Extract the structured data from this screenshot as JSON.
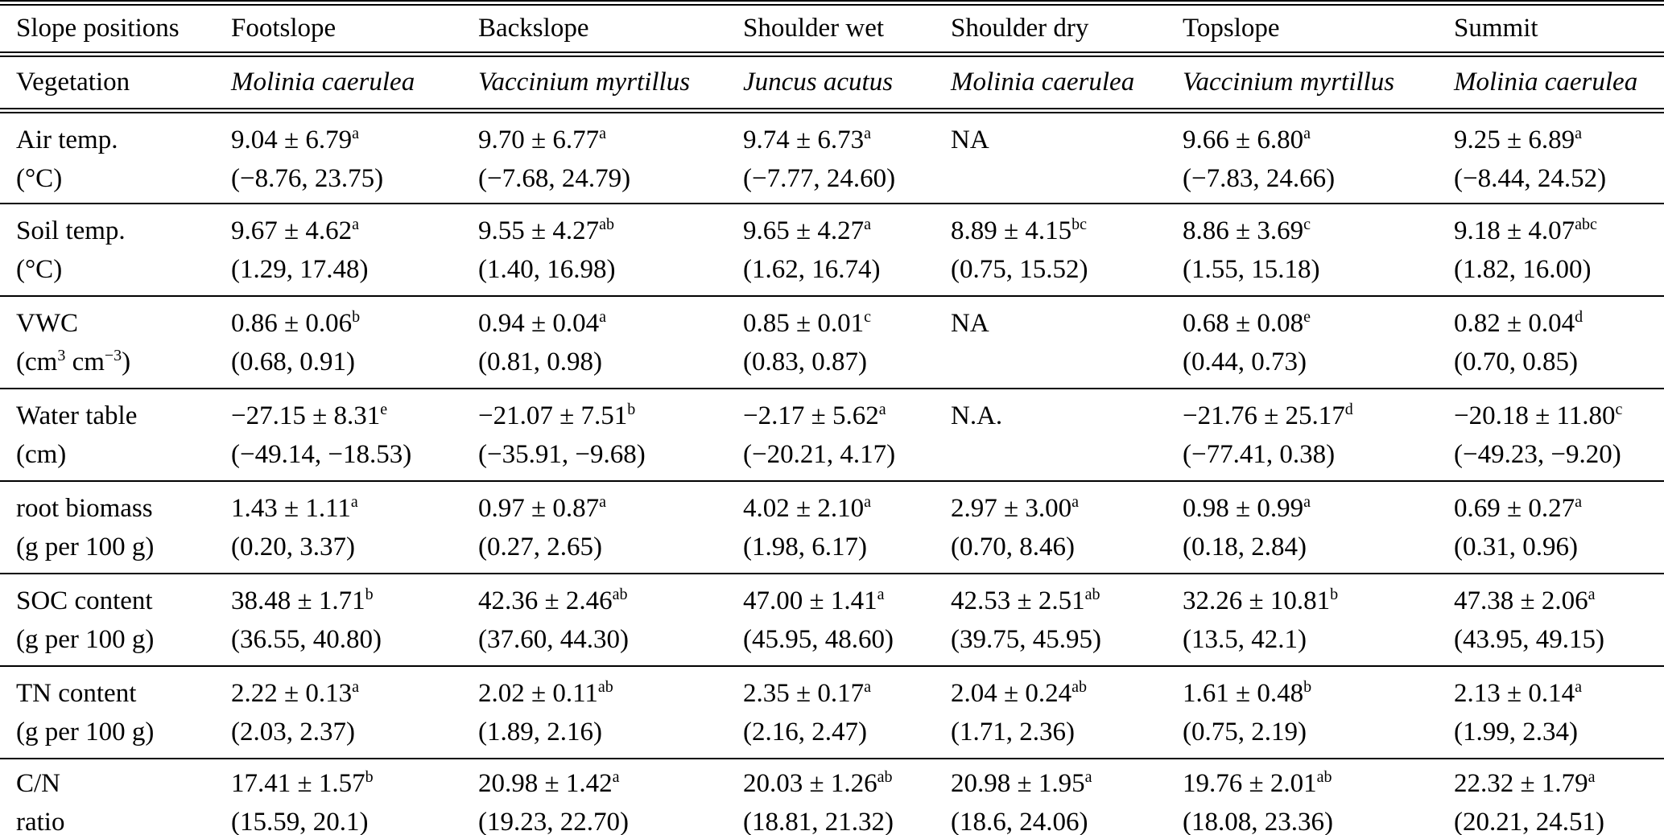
{
  "table": {
    "header": {
      "label": "Slope positions",
      "columns": [
        "Footslope",
        "Backslope",
        "Shoulder wet",
        "Shoulder dry",
        "Topslope",
        "Summit"
      ]
    },
    "vegetation": {
      "label": "Vegetation",
      "values": [
        "Molinia caerulea",
        "Vaccinium myrtillus",
        "Juncus acutus",
        "Molinia caerulea",
        "Vaccinium myrtillus",
        "Molinia caerulea"
      ]
    },
    "rows": [
      {
        "label": "Air temp.",
        "sublabel": [
          {
            "t": "(°C)"
          }
        ],
        "cells": [
          {
            "mean": "9.04 ± 6.79",
            "sup": "a",
            "range": "(−8.76, 23.75)"
          },
          {
            "mean": "9.70 ± 6.77",
            "sup": "a",
            "range": "(−7.68, 24.79)"
          },
          {
            "mean": "9.74 ± 6.73",
            "sup": "a",
            "range": "(−7.77, 24.60)"
          },
          {
            "na": "NA"
          },
          {
            "mean": "9.66 ± 6.80",
            "sup": "a",
            "range": "(−7.83, 24.66)"
          },
          {
            "mean": "9.25 ± 6.89",
            "sup": "a",
            "range": "(−8.44, 24.52)"
          }
        ]
      },
      {
        "label": "Soil temp.",
        "sublabel": [
          {
            "t": "(°C)"
          }
        ],
        "cells": [
          {
            "mean": "9.67 ± 4.62",
            "sup": "a",
            "range": "(1.29, 17.48)"
          },
          {
            "mean": "9.55 ± 4.27",
            "sup": "ab",
            "range": "(1.40, 16.98)"
          },
          {
            "mean": "9.65 ± 4.27",
            "sup": "a",
            "range": "(1.62, 16.74)"
          },
          {
            "mean": "8.89 ± 4.15",
            "sup": "bc",
            "range": "(0.75, 15.52)"
          },
          {
            "mean": "8.86 ± 3.69",
            "sup": "c",
            "range": "(1.55, 15.18)"
          },
          {
            "mean": "9.18 ± 4.07",
            "sup": "abc",
            "range": "(1.82, 16.00)"
          }
        ]
      },
      {
        "label": "VWC",
        "sublabel": [
          {
            "t": "(cm"
          },
          {
            "sup": "3"
          },
          {
            "t": " cm"
          },
          {
            "sup": "−3"
          },
          {
            "t": ")"
          }
        ],
        "cells": [
          {
            "mean": "0.86 ± 0.06",
            "sup": "b",
            "range": "(0.68, 0.91)"
          },
          {
            "mean": "0.94 ± 0.04",
            "sup": "a",
            "range": "(0.81, 0.98)"
          },
          {
            "mean": "0.85 ± 0.01",
            "sup": "c",
            "range": "(0.83, 0.87)"
          },
          {
            "na": "NA"
          },
          {
            "mean": "0.68 ± 0.08",
            "sup": "e",
            "range": "(0.44, 0.73)"
          },
          {
            "mean": "0.82 ± 0.04",
            "sup": "d",
            "range": "(0.70, 0.85)"
          }
        ]
      },
      {
        "label": "Water table",
        "sublabel": [
          {
            "t": "(cm)"
          }
        ],
        "cells": [
          {
            "mean": "−27.15 ± 8.31",
            "sup": "e",
            "range": "(−49.14, −18.53)"
          },
          {
            "mean": "−21.07 ± 7.51",
            "sup": "b",
            "range": "(−35.91, −9.68)"
          },
          {
            "mean": "−2.17 ± 5.62",
            "sup": "a",
            "range": "(−20.21, 4.17)"
          },
          {
            "na": "N.A."
          },
          {
            "mean": "−21.76 ± 25.17",
            "sup": "d",
            "range": "(−77.41, 0.38)"
          },
          {
            "mean": "−20.18 ± 11.80",
            "sup": "c",
            "range": "(−49.23, −9.20)"
          }
        ]
      },
      {
        "label": "root biomass",
        "sublabel": [
          {
            "t": "(g per 100 g)"
          }
        ],
        "cells": [
          {
            "mean": "1.43 ± 1.11",
            "sup": "a",
            "range": "(0.20, 3.37)"
          },
          {
            "mean": "0.97 ± 0.87",
            "sup": "a",
            "range": "(0.27, 2.65)"
          },
          {
            "mean": "4.02 ± 2.10",
            "sup": "a",
            "range": "(1.98, 6.17)"
          },
          {
            "mean": "2.97 ± 3.00",
            "sup": "a",
            "range": "(0.70, 8.46)"
          },
          {
            "mean": "0.98 ± 0.99",
            "sup": "a",
            "range": "(0.18, 2.84)"
          },
          {
            "mean": "0.69 ± 0.27",
            "sup": "a",
            "range": "(0.31, 0.96)"
          }
        ]
      },
      {
        "label": "SOC content",
        "sublabel": [
          {
            "t": "(g per 100 g)"
          }
        ],
        "cells": [
          {
            "mean": "38.48 ± 1.71",
            "sup": "b",
            "range": "(36.55, 40.80)"
          },
          {
            "mean": "42.36 ± 2.46",
            "sup": "ab",
            "range": "(37.60, 44.30)"
          },
          {
            "mean": "47.00 ± 1.41",
            "sup": "a",
            "range": "(45.95, 48.60)"
          },
          {
            "mean": "42.53 ± 2.51",
            "sup": "ab",
            "range": "(39.75, 45.95)"
          },
          {
            "mean": "32.26 ± 10.81",
            "sup": "b",
            "range": "(13.5, 42.1)"
          },
          {
            "mean": "47.38 ± 2.06",
            "sup": "a",
            "range": "(43.95, 49.15)"
          }
        ]
      },
      {
        "label": "TN content",
        "sublabel": [
          {
            "t": "(g per 100 g)"
          }
        ],
        "cells": [
          {
            "mean": "2.22 ± 0.13",
            "sup": "a",
            "range": "(2.03, 2.37)"
          },
          {
            "mean": "2.02 ± 0.11",
            "sup": "ab",
            "range": "(1.89, 2.16)"
          },
          {
            "mean": "2.35 ± 0.17",
            "sup": "a",
            "range": "(2.16, 2.47)"
          },
          {
            "mean": "2.04 ± 0.24",
            "sup": "ab",
            "range": "(1.71, 2.36)"
          },
          {
            "mean": "1.61 ± 0.48",
            "sup": "b",
            "range": "(0.75, 2.19)"
          },
          {
            "mean": "2.13 ± 0.14",
            "sup": "a",
            "range": "(1.99, 2.34)"
          }
        ]
      },
      {
        "label": "C/N",
        "sublabel": [
          {
            "t": "ratio"
          }
        ],
        "cells": [
          {
            "mean": "17.41 ± 1.57",
            "sup": "b",
            "range": "(15.59, 20.1)"
          },
          {
            "mean": "20.98 ± 1.42",
            "sup": "a",
            "range": "(19.23, 22.70)"
          },
          {
            "mean": "20.03 ± 1.26",
            "sup": "ab",
            "range": "(18.81, 21.32)"
          },
          {
            "mean": "20.98 ± 1.95",
            "sup": "a",
            "range": "(18.6, 24.06)"
          },
          {
            "mean": "19.76 ± 2.01",
            "sup": "ab",
            "range": "(18.08, 23.36)"
          },
          {
            "mean": "22.32 ± 1.79",
            "sup": "a",
            "range": "(20.21, 24.51)"
          }
        ]
      }
    ]
  }
}
